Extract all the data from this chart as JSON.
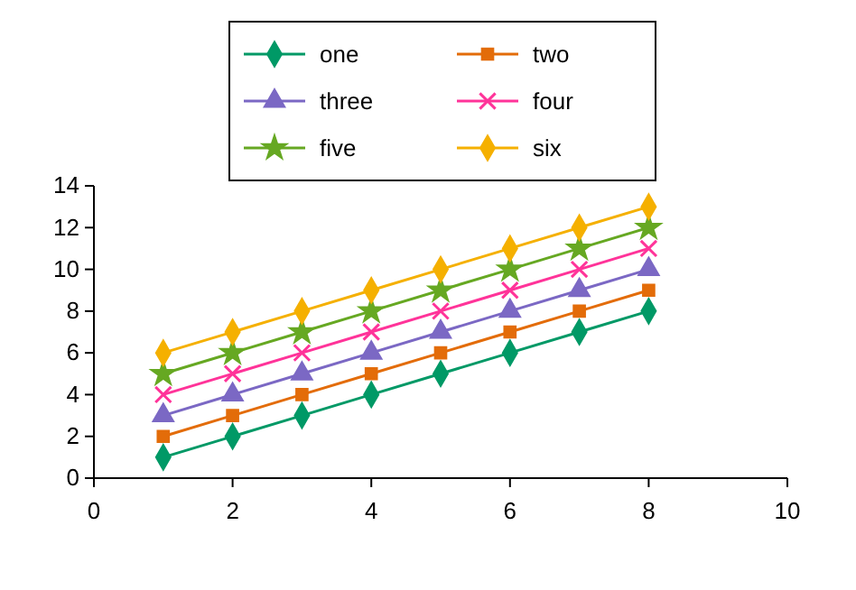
{
  "chart_data": {
    "type": "line",
    "x": [
      1,
      2,
      3,
      4,
      5,
      6,
      7,
      8
    ],
    "series": [
      {
        "name": "one",
        "color": "#009966",
        "marker": "diamond",
        "values": [
          1,
          2,
          3,
          4,
          5,
          6,
          7,
          8
        ]
      },
      {
        "name": "two",
        "color": "#e36c09",
        "marker": "square",
        "values": [
          2,
          3,
          4,
          5,
          6,
          7,
          8,
          9
        ]
      },
      {
        "name": "three",
        "color": "#7b68c4",
        "marker": "triangle",
        "values": [
          3,
          4,
          5,
          6,
          7,
          8,
          9,
          10
        ]
      },
      {
        "name": "four",
        "color": "#ff3399",
        "marker": "cross",
        "values": [
          4,
          5,
          6,
          7,
          8,
          9,
          10,
          11
        ]
      },
      {
        "name": "five",
        "color": "#66a822",
        "marker": "star",
        "values": [
          5,
          6,
          7,
          8,
          9,
          10,
          11,
          12
        ]
      },
      {
        "name": "six",
        "color": "#f5b000",
        "marker": "diamond",
        "values": [
          6,
          7,
          8,
          9,
          10,
          11,
          12,
          13
        ]
      }
    ],
    "xlim": [
      0,
      10
    ],
    "xticks": [
      0,
      2,
      4,
      6,
      8,
      10
    ],
    "ylim": [
      0,
      14
    ],
    "yticks": [
      0,
      2,
      4,
      6,
      8,
      10,
      12,
      14
    ],
    "grid": false,
    "legend": "top",
    "line_style": "solid"
  }
}
